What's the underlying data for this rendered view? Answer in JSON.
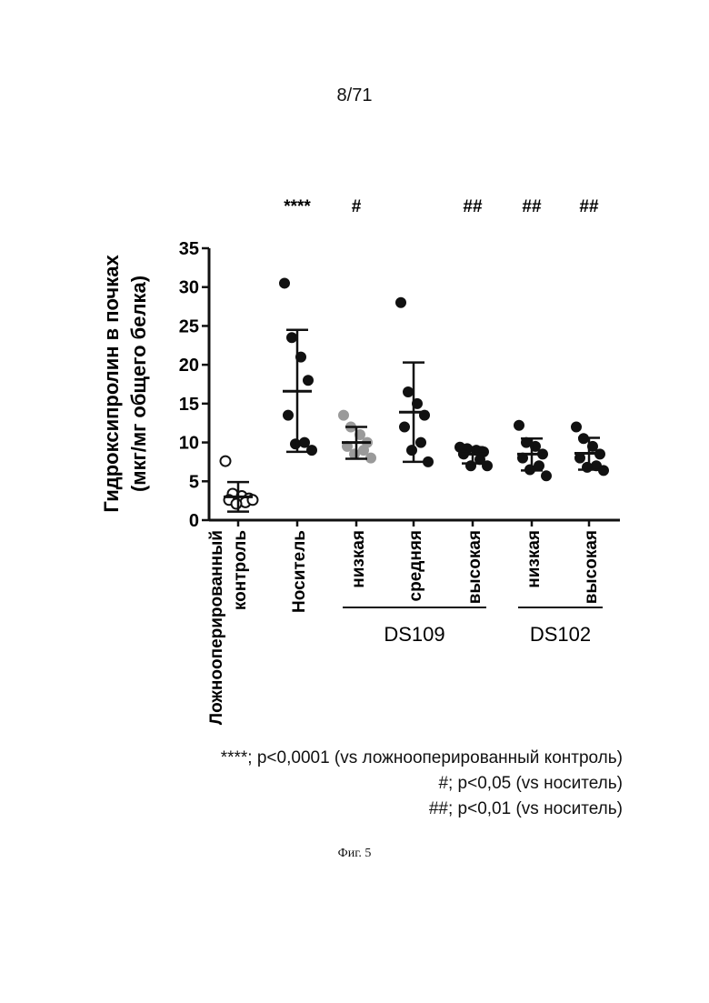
{
  "page": {
    "number": "8/71",
    "caption": "Фиг. 5"
  },
  "legend_notes": [
    "****; p<0,0001 (vs ложнооперированный контроль)",
    "#; p<0,05 (vs носитель)",
    "##; p<0,01 (vs носитель)"
  ],
  "chart_data": {
    "type": "scatter",
    "ylabel_line1": "Гидроксипролин в почках",
    "ylabel_line2": "(мкг/мг общего белка)",
    "ylim": [
      0,
      35
    ],
    "yticks": [
      "0",
      "5",
      "10",
      "15",
      "20",
      "25",
      "30",
      "35"
    ],
    "categories": [
      {
        "label_lines": [
          "Ложнооперированный",
          "контроль"
        ],
        "sig": "",
        "color": "#ffffff",
        "outline": "#111111",
        "mean": 3.0,
        "sd_low": 1.1,
        "sd_high": 4.9,
        "values": [
          7.6,
          3.4,
          3.1,
          2.8,
          2.6,
          2.3,
          2.1,
          2.6
        ]
      },
      {
        "label_lines": [
          "Носитель"
        ],
        "sig": "****",
        "color": "#111111",
        "outline": "#111111",
        "mean": 16.6,
        "sd_low": 8.8,
        "sd_high": 24.5,
        "values": [
          30.5,
          23.5,
          21.0,
          18.0,
          13.5,
          10.0,
          9.8,
          9.0
        ]
      },
      {
        "label_lines": [
          "низкая"
        ],
        "sig": "#",
        "color": "#9a9a9a",
        "outline": "#9a9a9a",
        "mean": 10.0,
        "sd_low": 7.9,
        "sd_high": 12.0,
        "values": [
          13.5,
          12.0,
          11.0,
          10.0,
          9.5,
          9.0,
          8.5,
          8.0
        ]
      },
      {
        "label_lines": [
          "средняя"
        ],
        "sig": "",
        "color": "#111111",
        "outline": "#111111",
        "mean": 13.9,
        "sd_low": 7.5,
        "sd_high": 20.3,
        "values": [
          28.0,
          16.5,
          15.0,
          13.5,
          12.0,
          10.0,
          9.0,
          7.5
        ]
      },
      {
        "label_lines": [
          "высокая"
        ],
        "sig": "##",
        "color": "#111111",
        "outline": "#111111",
        "mean": 8.5,
        "sd_low": 7.3,
        "sd_high": 9.4,
        "values": [
          9.4,
          9.2,
          9.0,
          8.8,
          8.5,
          7.8,
          7.0,
          7.0
        ]
      },
      {
        "label_lines": [
          "низкая"
        ],
        "sig": "##",
        "color": "#111111",
        "outline": "#111111",
        "mean": 8.5,
        "sd_low": 6.4,
        "sd_high": 10.5,
        "values": [
          12.2,
          10.0,
          9.5,
          8.5,
          8.0,
          7.0,
          6.5,
          5.7
        ]
      },
      {
        "label_lines": [
          "высокая"
        ],
        "sig": "##",
        "color": "#111111",
        "outline": "#111111",
        "mean": 8.6,
        "sd_low": 6.5,
        "sd_high": 10.6,
        "values": [
          12.0,
          10.5,
          9.5,
          8.5,
          8.0,
          7.0,
          6.8,
          6.4
        ]
      }
    ],
    "groups": [
      {
        "name": "DS109",
        "from": 2,
        "to": 4
      },
      {
        "name": "DS102",
        "from": 5,
        "to": 6
      }
    ]
  }
}
